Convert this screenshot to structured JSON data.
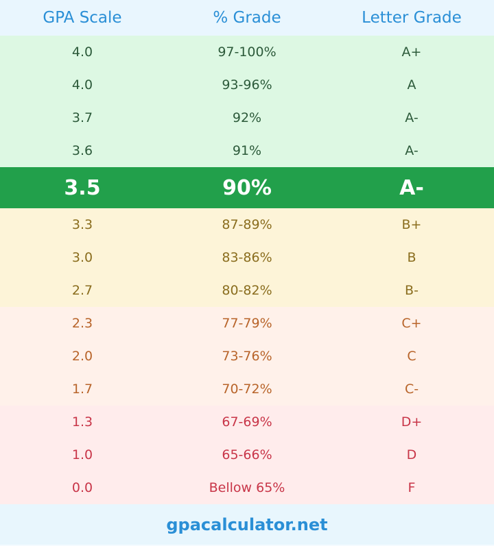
{
  "header": {
    "col1": "GPA Scale",
    "col2": "% Grade",
    "col3": "Letter Grade"
  },
  "colors": {
    "header_text": "#2a8fd6",
    "highlight_bg": "#22a04b",
    "green_bg": "#ddf8e3",
    "yellow_bg": "#fdf4d8",
    "orange_bg": "#fff1ea",
    "red_bg": "#ffecec"
  },
  "rows": [
    {
      "gpa": "4.0",
      "percent": "97-100%",
      "letter": "A+",
      "band": "green"
    },
    {
      "gpa": "4.0",
      "percent": "93-96%",
      "letter": "A",
      "band": "green"
    },
    {
      "gpa": "3.7",
      "percent": "92%",
      "letter": "A-",
      "band": "green"
    },
    {
      "gpa": "3.6",
      "percent": "91%",
      "letter": "A-",
      "band": "green"
    },
    {
      "gpa": "3.5",
      "percent": "90%",
      "letter": "A-",
      "band": "highlight"
    },
    {
      "gpa": "3.3",
      "percent": "87-89%",
      "letter": "B+",
      "band": "yellow"
    },
    {
      "gpa": "3.0",
      "percent": "83-86%",
      "letter": "B",
      "band": "yellow"
    },
    {
      "gpa": "2.7",
      "percent": "80-82%",
      "letter": "B-",
      "band": "yellow"
    },
    {
      "gpa": "2.3",
      "percent": "77-79%",
      "letter": "C+",
      "band": "orange"
    },
    {
      "gpa": "2.0",
      "percent": "73-76%",
      "letter": "C",
      "band": "orange"
    },
    {
      "gpa": "1.7",
      "percent": "70-72%",
      "letter": "C-",
      "band": "orange"
    },
    {
      "gpa": "1.3",
      "percent": "67-69%",
      "letter": "D+",
      "band": "red"
    },
    {
      "gpa": "1.0",
      "percent": "65-66%",
      "letter": "D",
      "band": "red"
    },
    {
      "gpa": "0.0",
      "percent": "Bellow 65%",
      "letter": "F",
      "band": "red"
    }
  ],
  "footer": {
    "site": "gpacalculator.net"
  }
}
